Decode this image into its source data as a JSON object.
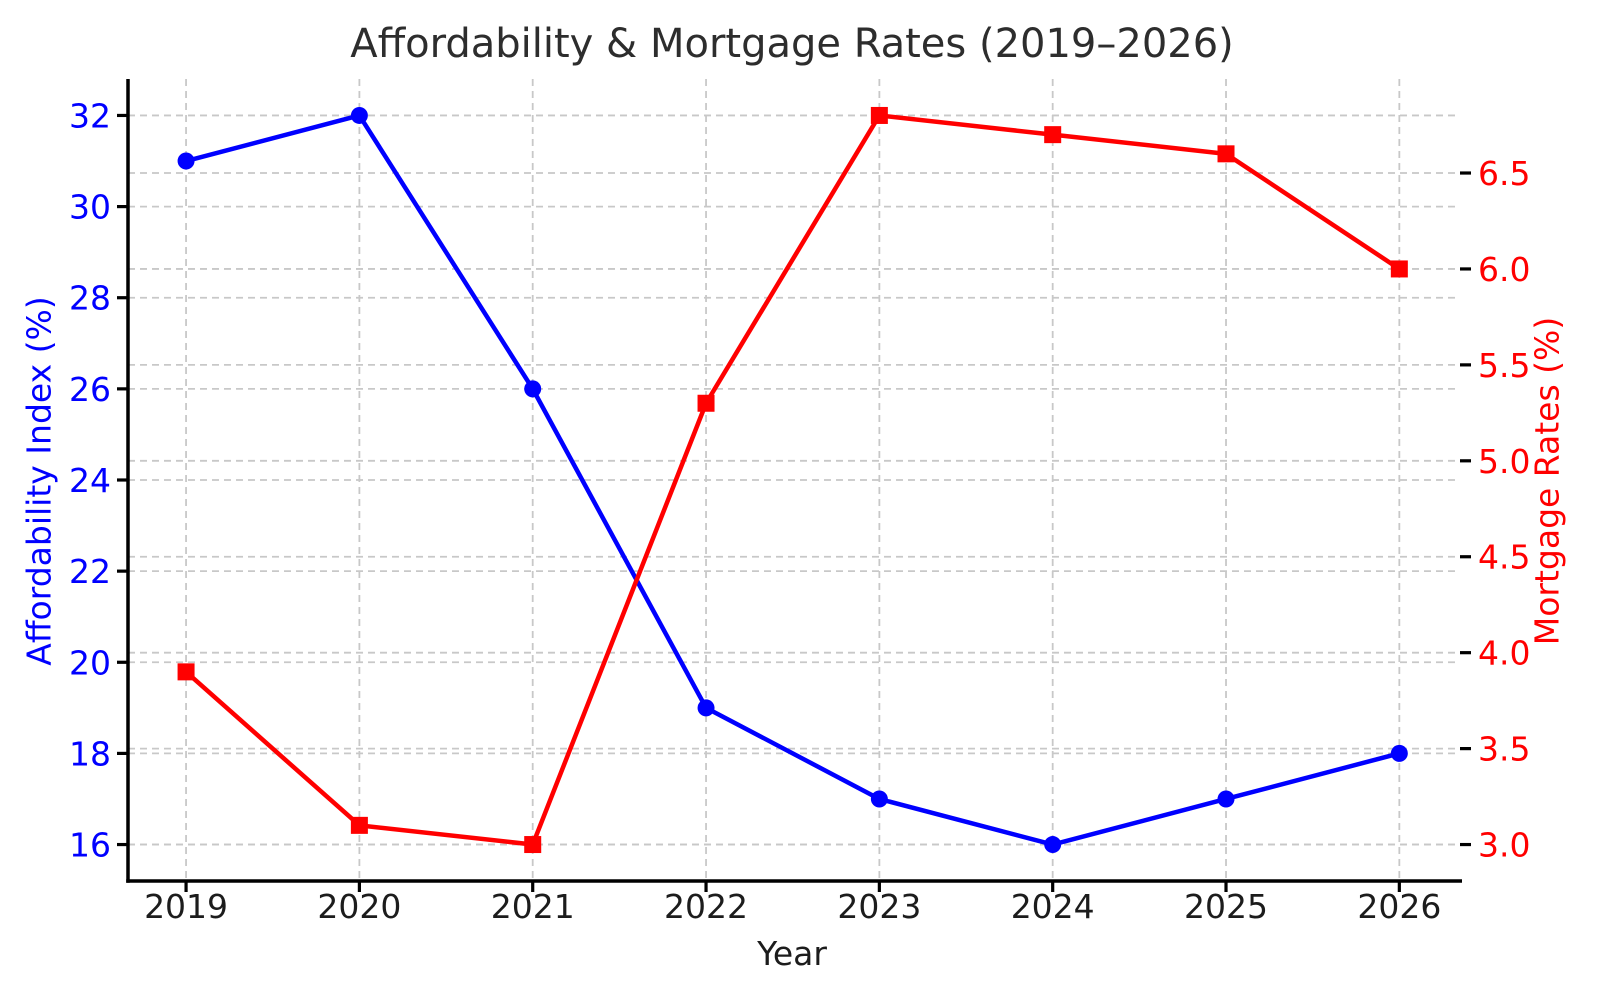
{
  "chart_data": {
    "type": "line",
    "title": "Affordability & Mortgage Rates (2019–2026)",
    "xlabel": "Year",
    "ylabel_left": "Affordability Index (%)",
    "ylabel_right": "Mortgage Rates (%)",
    "categories": [
      "2019",
      "2020",
      "2021",
      "2022",
      "2023",
      "2024",
      "2025",
      "2026"
    ],
    "series": [
      {
        "name": "Affordability Index (%)",
        "axis": "left",
        "color": "#0000ff",
        "marker": "circle",
        "values": [
          31,
          32,
          26,
          19,
          17,
          16,
          17,
          18
        ]
      },
      {
        "name": "Mortgage Rates (%)",
        "axis": "right",
        "color": "#ff0000",
        "marker": "square",
        "values": [
          3.9,
          3.1,
          3.0,
          5.3,
          6.8,
          6.7,
          6.6,
          6.0
        ]
      }
    ],
    "left_axis": {
      "ticks": [
        16,
        18,
        20,
        22,
        24,
        26,
        28,
        30,
        32
      ],
      "min": 15.2,
      "max": 32.8,
      "tick_color": "#0000ff"
    },
    "right_axis": {
      "ticks": [
        3.0,
        3.5,
        4.0,
        4.5,
        5.0,
        5.5,
        6.0,
        6.5
      ],
      "min": 2.81,
      "max": 6.99,
      "tick_color": "#ff0000",
      "tick_format_decimals": 1
    },
    "x_axis": {
      "min": -0.335,
      "max": 7.35,
      "tick_color": "#1c1c1c"
    },
    "grid": {
      "show": true,
      "color": "#c8c8c8",
      "style": "dashed"
    },
    "legend_position": "none",
    "spine_color": "#000000",
    "background": "#ffffff"
  }
}
